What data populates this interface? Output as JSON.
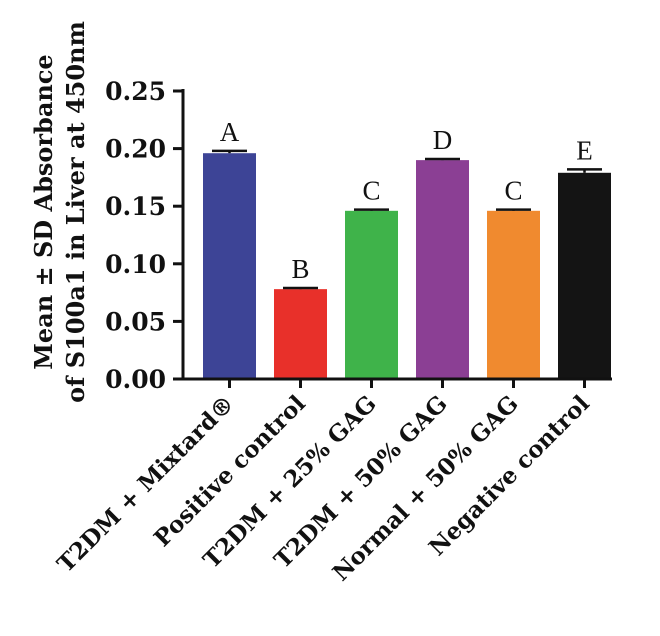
{
  "chart_data": {
    "type": "bar",
    "categories": [
      "T2DM + Mixtard®",
      "Positive control",
      "T2DM + 25% GAG",
      "T2DM + 50% GAG",
      "Normal + 50% GAG",
      "Negative control"
    ],
    "values": [
      0.196,
      0.078,
      0.146,
      0.19,
      0.146,
      0.179
    ],
    "errors": [
      0.002,
      0.001,
      0.001,
      0.001,
      0.001,
      0.003
    ],
    "significance_labels": [
      "A",
      "B",
      "C",
      "D",
      "C",
      "E"
    ],
    "colors": [
      "#3d4496",
      "#e8302a",
      "#3fb34a",
      "#8b3f94",
      "#f08a2f",
      "#141414"
    ],
    "ylabel_lines": [
      "Mean ± SD Absorbance",
      "of S100a1 in Liver at 450nm"
    ],
    "ylim": [
      0,
      0.25
    ],
    "yticks": [
      0.0,
      0.05,
      0.1,
      0.15,
      0.2,
      0.25
    ],
    "ytick_labels": [
      "0.00",
      "0.05",
      "0.10",
      "0.15",
      "0.20",
      "0.25"
    ],
    "grid": false
  }
}
